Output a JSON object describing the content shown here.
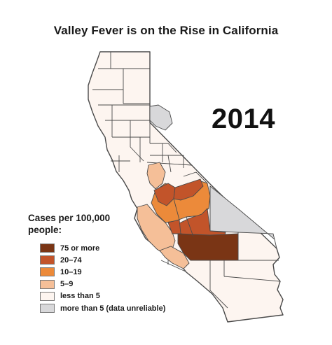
{
  "map": {
    "title": "Valley Fever is on the Rise in California",
    "year": "2014"
  },
  "legend": {
    "title": "Cases per 100,000 people:",
    "items": [
      {
        "label": "75 or more",
        "color": "#7a3515"
      },
      {
        "label": "20–74",
        "color": "#c2542a"
      },
      {
        "label": "10–19",
        "color": "#ec8a3a"
      },
      {
        "label": "5–9",
        "color": "#f5bf98"
      },
      {
        "label": "less than 5",
        "color": "#fdf5f0"
      },
      {
        "label": "more than 5 (data unreliable)",
        "color": "#d8d8da"
      }
    ]
  },
  "colors": {
    "county_border": "#4a4a4a",
    "low": "#fdf5f0"
  }
}
